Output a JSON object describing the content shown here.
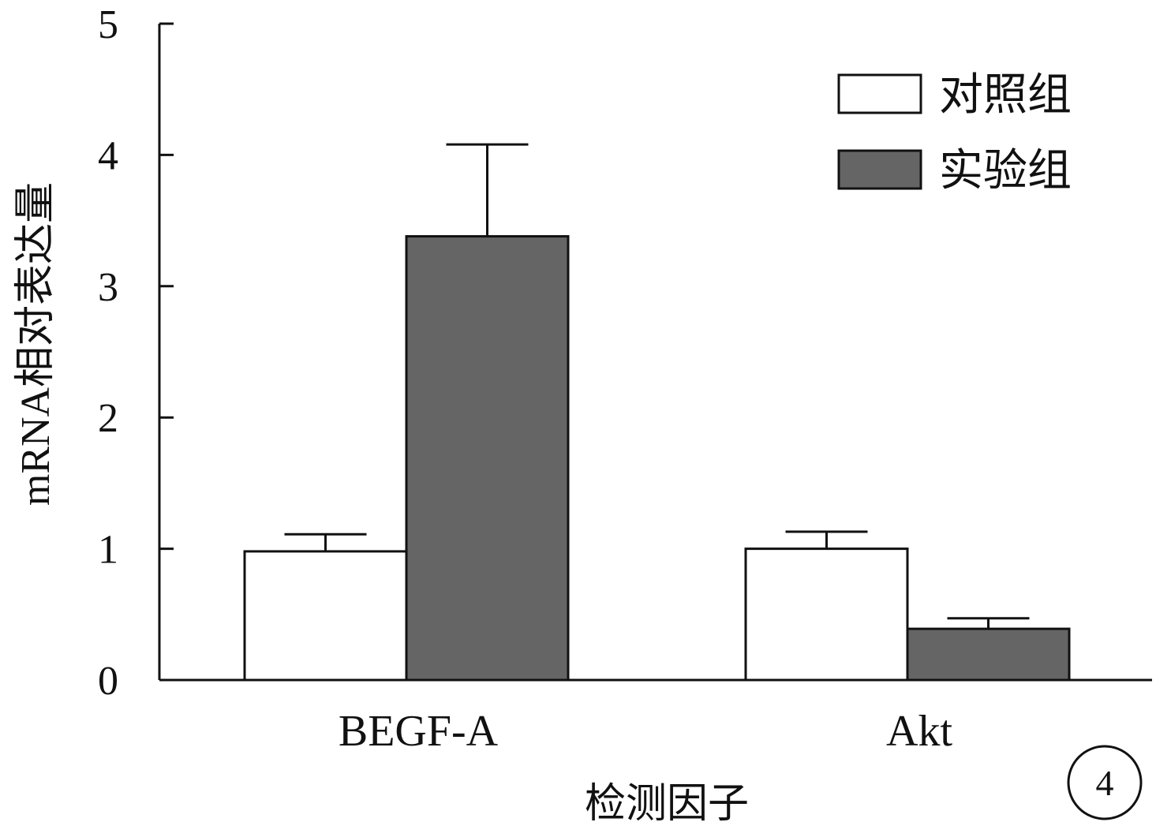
{
  "chart_data": {
    "type": "bar",
    "title": "",
    "xlabel": "检测因子",
    "ylabel": "mRNA相对表达量",
    "categories": [
      "BEGF-A",
      "Akt"
    ],
    "series": [
      {
        "name": "对照组",
        "values": [
          0.98,
          1.0
        ],
        "errors": [
          0.13,
          0.13
        ],
        "color": "#ffffff"
      },
      {
        "name": "实验组",
        "values": [
          3.38,
          0.39
        ],
        "errors": [
          0.7,
          0.08
        ],
        "color": "#656565"
      }
    ],
    "ylim": [
      0,
      5
    ],
    "yticks": [
      "0",
      "1",
      "2",
      "3",
      "4",
      "5"
    ],
    "grid": false,
    "legend_position": "top-right",
    "panel_badge": "4"
  }
}
